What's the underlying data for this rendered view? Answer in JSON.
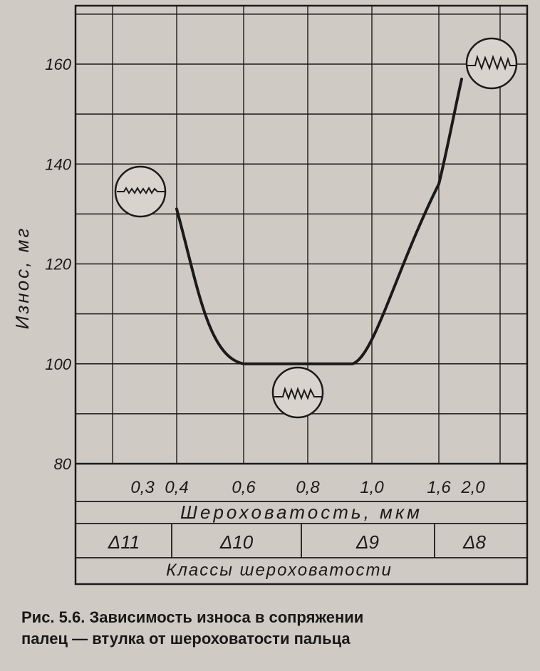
{
  "chart_data": {
    "type": "line",
    "ylabel": "Износ, мг",
    "yticks": [
      80,
      100,
      120,
      140,
      160
    ],
    "ylim": [
      80,
      170
    ],
    "x_tick_labels": [
      "0,3",
      "0,4",
      "0,6",
      "0,8",
      "1,0",
      "1,6",
      "2,0"
    ],
    "xlabel": "Шероховатость, мкм",
    "class_labels": [
      "Δ11",
      "Δ10",
      "Δ9",
      "Δ8"
    ],
    "class_caption": "Классы шероховатости",
    "grid": true,
    "series": [
      {
        "x": [
          "0,4",
          "0,6",
          "0,8",
          "1,0",
          "1,6",
          "2,0"
        ],
        "values": [
          131,
          100,
          100,
          100,
          136,
          157
        ]
      }
    ]
  },
  "caption": {
    "line1": "Рис. 5.6. Зависимость износа в сопряжении",
    "line2": "палец — втулка от шероховатости пальца"
  },
  "colors": {
    "paper": "#cfcbc4",
    "ink": "#1c1a18"
  }
}
